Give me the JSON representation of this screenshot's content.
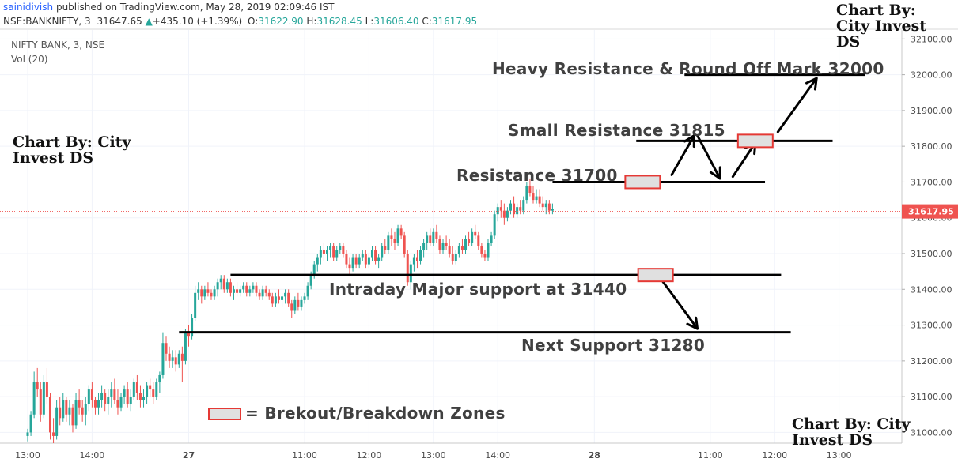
{
  "header": {
    "author": "sainidivish",
    "published": "published on TradingView.com, May 28, 2019 02:09:46 IST",
    "symbol": "NSE:BANKNIFTY, 3",
    "last": "31647.65",
    "change": "+435.10 (+1.39%)",
    "o_label": "O:",
    "o_value": "31622.90",
    "h_label": "H:",
    "h_value": "31628.45",
    "l_label": "L:",
    "l_value": "31606.40",
    "c_label": "C:",
    "c_value": "31617.95",
    "instrument": "NIFTY BANK, 3, NSE",
    "volume": "Vol (20)"
  },
  "watermarks": {
    "top_right": "Chart By: City Invest DS",
    "left": "Chart By: City Invest DS",
    "bottom_right": "Chart By: City Invest DS"
  },
  "annotations": {
    "heavy_resistance": "Heavy Resistance & Round Off Mark 32000",
    "small_resistance": "Small Resistance 31815",
    "resistance": "Resistance 31700",
    "major_support": "Intraday Major support at 31440",
    "next_support": "Next Support 31280",
    "legend": "= Brekout/Breakdown Zones"
  },
  "colors": {
    "up": "#26a69a",
    "down": "#ef5350",
    "zone_fill": "#e0e0e0",
    "zone_border": "#e53935",
    "price_tag": "#ef5350"
  },
  "chart_data": {
    "type": "candlestick",
    "symbol": "NIFTY BANK, 3, NSE",
    "ylim": [
      30970,
      32125
    ],
    "y_ticks": [
      31000,
      31100,
      31200,
      31300,
      31400,
      31500,
      31600,
      31700,
      31800,
      31900,
      32000,
      32100
    ],
    "y_tick_labels": [
      "31000.00",
      "31100.00",
      "31200.00",
      "31300.00",
      "31400.00",
      "31500.00",
      "31600.00",
      "31700.00",
      "31800.00",
      "31900.00",
      "32000.00",
      "32100.00"
    ],
    "x_ticks": [
      {
        "label": "13:00",
        "bar": 0
      },
      {
        "label": "14:00",
        "bar": 20
      },
      {
        "label": "27",
        "bar": 50
      },
      {
        "label": "11:00",
        "bar": 86
      },
      {
        "label": "12:00",
        "bar": 106
      },
      {
        "label": "13:00",
        "bar": 126
      },
      {
        "label": "14:00",
        "bar": 146
      },
      {
        "label": "28",
        "bar": 176
      },
      {
        "label": "11:00",
        "bar": 212
      },
      {
        "label": "12:00",
        "bar": 232
      },
      {
        "label": "13:00",
        "bar": 252
      }
    ],
    "last_price": 31617.95,
    "last_price_label": "31617.95",
    "candles": [
      [
        30990,
        31010,
        30975,
        31000
      ],
      [
        31000,
        31060,
        30990,
        31050
      ],
      [
        31050,
        31170,
        31040,
        31140
      ],
      [
        31140,
        31180,
        31100,
        31120
      ],
      [
        31120,
        31140,
        31030,
        31050
      ],
      [
        31050,
        31160,
        31040,
        31140
      ],
      [
        31140,
        31180,
        31080,
        31100
      ],
      [
        31100,
        31110,
        30980,
        31000
      ],
      [
        31000,
        31040,
        30970,
        30990
      ],
      [
        30990,
        31090,
        30980,
        31070
      ],
      [
        31070,
        31100,
        31020,
        31040
      ],
      [
        31040,
        31110,
        31030,
        31090
      ],
      [
        31090,
        31100,
        31030,
        31050
      ],
      [
        31050,
        31090,
        31020,
        31070
      ],
      [
        31070,
        31080,
        31000,
        31020
      ],
      [
        31020,
        31110,
        31010,
        31090
      ],
      [
        31090,
        31120,
        31050,
        31070
      ],
      [
        31070,
        31090,
        31030,
        31050
      ],
      [
        31050,
        31100,
        31020,
        31080
      ],
      [
        31080,
        31130,
        31060,
        31120
      ],
      [
        31120,
        31140,
        31070,
        31090
      ],
      [
        31090,
        31100,
        31050,
        31070
      ],
      [
        31070,
        31110,
        31050,
        31090
      ],
      [
        31090,
        31130,
        31070,
        31110
      ],
      [
        31110,
        31120,
        31060,
        31080
      ],
      [
        31080,
        31120,
        31050,
        31100
      ],
      [
        31100,
        31140,
        31070,
        31120
      ],
      [
        31120,
        31150,
        31080,
        31090
      ],
      [
        31090,
        31120,
        31050,
        31070
      ],
      [
        31070,
        31110,
        31060,
        31100
      ],
      [
        31100,
        31130,
        31080,
        31120
      ],
      [
        31120,
        31140,
        31070,
        31080
      ],
      [
        31080,
        31120,
        31060,
        31100
      ],
      [
        31100,
        31150,
        31090,
        31140
      ],
      [
        31140,
        31160,
        31090,
        31110
      ],
      [
        31110,
        31130,
        31070,
        31090
      ],
      [
        31090,
        31120,
        31070,
        31100
      ],
      [
        31100,
        31140,
        31080,
        31130
      ],
      [
        31130,
        31150,
        31100,
        31120
      ],
      [
        31120,
        31140,
        31080,
        31100
      ],
      [
        31100,
        31150,
        31090,
        31140
      ],
      [
        31140,
        31170,
        31110,
        31160
      ],
      [
        31160,
        31280,
        31150,
        31250
      ],
      [
        31250,
        31270,
        31200,
        31220
      ],
      [
        31220,
        31240,
        31180,
        31200
      ],
      [
        31200,
        31230,
        31180,
        31210
      ],
      [
        31210,
        31230,
        31170,
        31190
      ],
      [
        31190,
        31230,
        31180,
        31220
      ],
      [
        31220,
        31240,
        31140,
        31200
      ],
      [
        31200,
        31290,
        31190,
        31280
      ],
      [
        31280,
        31300,
        31240,
        31270
      ],
      [
        31270,
        31330,
        31260,
        31320
      ],
      [
        31320,
        31410,
        31310,
        31390
      ],
      [
        31390,
        31420,
        31370,
        31400
      ],
      [
        31400,
        31410,
        31360,
        31380
      ],
      [
        31380,
        31410,
        31370,
        31400
      ],
      [
        31400,
        31420,
        31380,
        31390
      ],
      [
        31390,
        31400,
        31370,
        31380
      ],
      [
        31380,
        31410,
        31370,
        31400
      ],
      [
        31400,
        31430,
        31380,
        31420
      ],
      [
        31420,
        31440,
        31400,
        31430
      ],
      [
        31430,
        31440,
        31390,
        31400
      ],
      [
        31400,
        31430,
        31390,
        31420
      ],
      [
        31420,
        31430,
        31380,
        31390
      ],
      [
        31390,
        31410,
        31370,
        31400
      ],
      [
        31400,
        31420,
        31380,
        31390
      ],
      [
        31390,
        31410,
        31380,
        31400
      ],
      [
        31400,
        31420,
        31390,
        31410
      ],
      [
        31410,
        31420,
        31380,
        31390
      ],
      [
        31390,
        31410,
        31380,
        31400
      ],
      [
        31400,
        31420,
        31390,
        31410
      ],
      [
        31410,
        31420,
        31380,
        31390
      ],
      [
        31390,
        31400,
        31370,
        31380
      ],
      [
        31380,
        31410,
        31370,
        31400
      ],
      [
        31400,
        31410,
        31380,
        31390
      ],
      [
        31390,
        31400,
        31370,
        31380
      ],
      [
        31380,
        31390,
        31350,
        31360
      ],
      [
        31360,
        31390,
        31350,
        31380
      ],
      [
        31380,
        31400,
        31360,
        31370
      ],
      [
        31370,
        31390,
        31350,
        31380
      ],
      [
        31380,
        31400,
        31360,
        31390
      ],
      [
        31390,
        31400,
        31350,
        31360
      ],
      [
        31360,
        31370,
        31320,
        31340
      ],
      [
        31340,
        31380,
        31330,
        31370
      ],
      [
        31370,
        31390,
        31340,
        31350
      ],
      [
        31350,
        31380,
        31340,
        31370
      ],
      [
        31370,
        31390,
        31360,
        31380
      ],
      [
        31380,
        31420,
        31370,
        31410
      ],
      [
        31410,
        31450,
        31400,
        31440
      ],
      [
        31440,
        31480,
        31430,
        31470
      ],
      [
        31470,
        31500,
        31450,
        31490
      ],
      [
        31490,
        31520,
        31470,
        31510
      ],
      [
        31510,
        31530,
        31480,
        31500
      ],
      [
        31500,
        31520,
        31480,
        31510
      ],
      [
        31510,
        31530,
        31490,
        31520
      ],
      [
        31520,
        31530,
        31480,
        31490
      ],
      [
        31490,
        31520,
        31480,
        31510
      ],
      [
        31510,
        31530,
        31500,
        31520
      ],
      [
        31520,
        31530,
        31490,
        31500
      ],
      [
        31500,
        31510,
        31460,
        31470
      ],
      [
        31470,
        31490,
        31440,
        31460
      ],
      [
        31460,
        31500,
        31450,
        31490
      ],
      [
        31490,
        31500,
        31460,
        31470
      ],
      [
        31470,
        31500,
        31460,
        31490
      ],
      [
        31490,
        31510,
        31480,
        31500
      ],
      [
        31500,
        31510,
        31460,
        31470
      ],
      [
        31470,
        31500,
        31460,
        31490
      ],
      [
        31490,
        31520,
        31480,
        31510
      ],
      [
        31510,
        31520,
        31470,
        31480
      ],
      [
        31480,
        31500,
        31460,
        31490
      ],
      [
        31490,
        31530,
        31480,
        31520
      ],
      [
        31520,
        31540,
        31500,
        31510
      ],
      [
        31510,
        31560,
        31500,
        31550
      ],
      [
        31550,
        31570,
        31520,
        31540
      ],
      [
        31540,
        31560,
        31510,
        31530
      ],
      [
        31530,
        31580,
        31520,
        31570
      ],
      [
        31570,
        31580,
        31540,
        31550
      ],
      [
        31550,
        31560,
        31490,
        31500
      ],
      [
        31500,
        31510,
        31410,
        31420
      ],
      [
        31420,
        31480,
        31400,
        31470
      ],
      [
        31470,
        31500,
        31450,
        31490
      ],
      [
        31490,
        31510,
        31460,
        31480
      ],
      [
        31480,
        31520,
        31470,
        31510
      ],
      [
        31510,
        31540,
        31490,
        31530
      ],
      [
        31530,
        31560,
        31510,
        31550
      ],
      [
        31550,
        31570,
        31520,
        31530
      ],
      [
        31530,
        31570,
        31520,
        31560
      ],
      [
        31560,
        31580,
        31530,
        31540
      ],
      [
        31540,
        31550,
        31500,
        31510
      ],
      [
        31510,
        31540,
        31500,
        31530
      ],
      [
        31530,
        31550,
        31510,
        31520
      ],
      [
        31520,
        31540,
        31490,
        31500
      ],
      [
        31500,
        31520,
        31470,
        31480
      ],
      [
        31480,
        31510,
        31470,
        31500
      ],
      [
        31500,
        31530,
        31490,
        31520
      ],
      [
        31520,
        31540,
        31500,
        31510
      ],
      [
        31510,
        31550,
        31500,
        31540
      ],
      [
        31540,
        31560,
        31520,
        31530
      ],
      [
        31530,
        31570,
        31520,
        31560
      ],
      [
        31560,
        31580,
        31540,
        31550
      ],
      [
        31550,
        31560,
        31510,
        31520
      ],
      [
        31520,
        31530,
        31490,
        31500
      ],
      [
        31500,
        31510,
        31480,
        31490
      ],
      [
        31490,
        31540,
        31480,
        31530
      ],
      [
        31530,
        31560,
        31520,
        31550
      ],
      [
        31550,
        31620,
        31540,
        31610
      ],
      [
        31610,
        31640,
        31590,
        31630
      ],
      [
        31630,
        31650,
        31600,
        31620
      ],
      [
        31620,
        31640,
        31580,
        31600
      ],
      [
        31600,
        31630,
        31590,
        31620
      ],
      [
        31620,
        31650,
        31610,
        31640
      ],
      [
        31640,
        31660,
        31600,
        31610
      ],
      [
        31610,
        31640,
        31600,
        31630
      ],
      [
        31630,
        31650,
        31610,
        31620
      ],
      [
        31620,
        31660,
        31610,
        31650
      ],
      [
        31650,
        31700,
        31640,
        31690
      ],
      [
        31690,
        31710,
        31660,
        31670
      ],
      [
        31670,
        31690,
        31640,
        31650
      ],
      [
        31650,
        31680,
        31640,
        31660
      ],
      [
        31660,
        31680,
        31630,
        31640
      ],
      [
        31640,
        31660,
        31620,
        31630
      ],
      [
        31630,
        31650,
        31610,
        31640
      ],
      [
        31640,
        31650,
        31610,
        31620
      ],
      [
        31620,
        31640,
        31610,
        31625
      ]
    ],
    "price_lines": [
      {
        "name": "heavy-resistance",
        "y": 32000,
        "x0": 204,
        "x1": 260
      },
      {
        "name": "small-resistance",
        "y": 31815,
        "x0": 189,
        "x1": 250
      },
      {
        "name": "resistance",
        "y": 31700,
        "x0": 163,
        "x1": 229
      },
      {
        "name": "major-support",
        "y": 31440,
        "x0": 63,
        "x1": 234
      },
      {
        "name": "next-support",
        "y": 31280,
        "x0": 47,
        "x1": 237
      }
    ],
    "zones": [
      {
        "bar": 191,
        "y": 31700
      },
      {
        "bar": 226,
        "y": 31815
      },
      {
        "bar": 195,
        "y": 31440
      }
    ],
    "arrows": [
      {
        "from": [
          200,
          31720
        ],
        "to": [
          207,
          31830
        ]
      },
      {
        "from": [
          208,
          31830
        ],
        "to": [
          215,
          31710
        ]
      },
      {
        "from": [
          219,
          31715
        ],
        "to": [
          226,
          31810
        ]
      },
      {
        "from": [
          233,
          31840
        ],
        "to": [
          245,
          31990
        ]
      },
      {
        "from": [
          197,
          31425
        ],
        "to": [
          208,
          31290
        ]
      }
    ]
  }
}
